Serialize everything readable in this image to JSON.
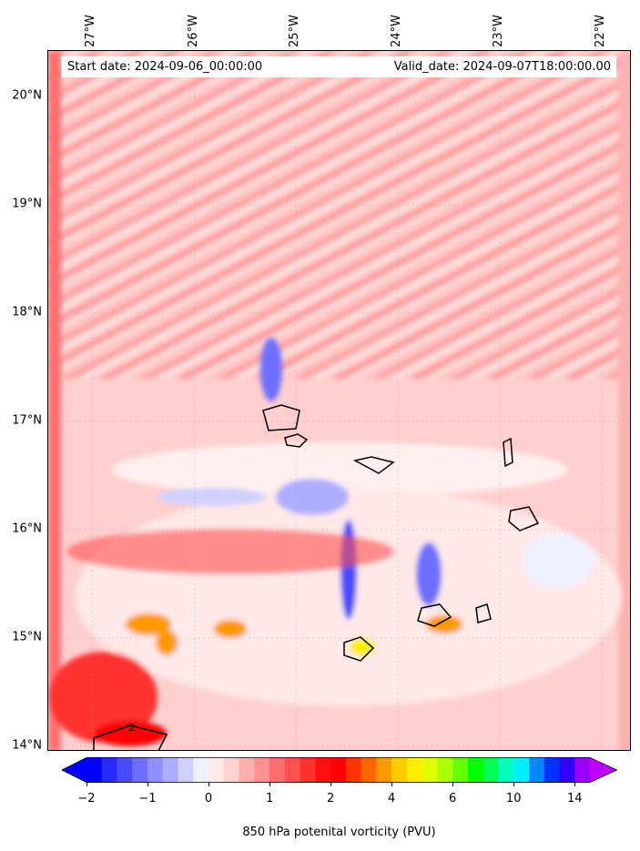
{
  "map": {
    "start_date": "Start date: 2024-09-06_00:00:00",
    "valid_date": "Valid_date: 2024-09-07T18:00:00.00",
    "lon_labels": [
      "27°W",
      "26°W",
      "25°W",
      "24°W",
      "23°W",
      "22°W"
    ],
    "lat_labels": [
      "20°N",
      "19°N",
      "18°N",
      "17°N",
      "16°N",
      "15°N",
      "14°N"
    ],
    "contour_label": "2"
  },
  "colorbar": {
    "label": "850 hPa potenital vorticity (PVU)",
    "tick_labels": [
      "−2",
      "−1",
      "0",
      "1",
      "2",
      "4",
      "6",
      "10",
      "14"
    ],
    "colors": [
      "#0000ff",
      "#2a2aff",
      "#4a4aff",
      "#6e6eff",
      "#9090ff",
      "#aeaeff",
      "#d0d0ff",
      "#f0f0ff",
      "#ffe8e8",
      "#ffd0d0",
      "#ffaeae",
      "#ff9090",
      "#ff6e6e",
      "#ff5050",
      "#ff3030",
      "#ff1010",
      "#ff0000",
      "#ff3300",
      "#ff6600",
      "#ff9900",
      "#ffcc00",
      "#ffee00",
      "#ddff00",
      "#aaff00",
      "#66ff00",
      "#00ff00",
      "#00ff55",
      "#00ffbb",
      "#00eeff",
      "#0088ff",
      "#0033ff",
      "#3300ff",
      "#9900ff"
    ],
    "under_color": "#0000ff",
    "over_color": "#c000ff"
  }
}
